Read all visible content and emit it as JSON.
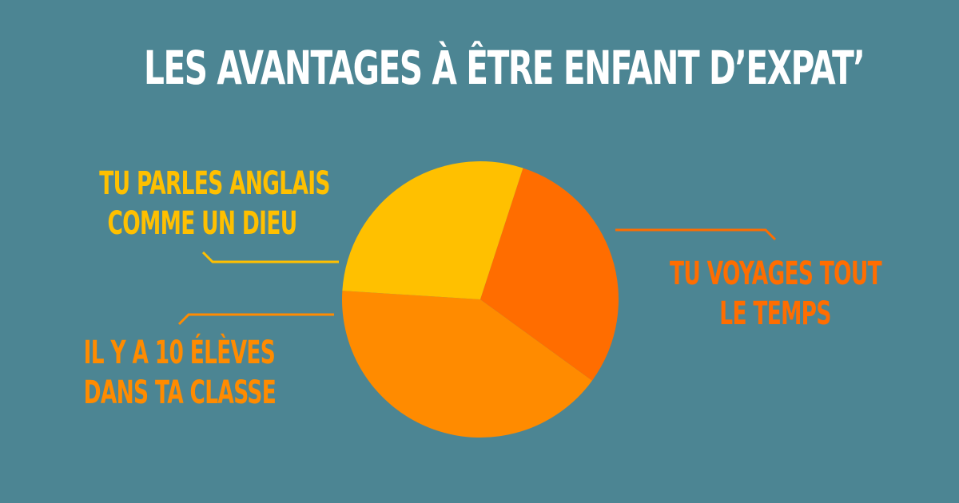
{
  "chart_data": {
    "type": "pie",
    "title": "LES AVANTAGES À ÊTRE ENFANT D’EXPAT’",
    "slices": [
      {
        "label_lines": [
          "TU VOYAGES TOUT",
          "LE TEMPS"
        ],
        "value": 30,
        "color": "#ff6d00"
      },
      {
        "label_lines": [
          "IL Y A 10 ÉLÈVES",
          "DANS TA CLASSE"
        ],
        "value": 41,
        "color": "#ff8b00"
      },
      {
        "label_lines": [
          "TU PARLES ANGLAIS",
          "COMME UN DIEU"
        ],
        "value": 29,
        "color": "#ffc000"
      }
    ],
    "start_angle_deg": 18,
    "legend": "none",
    "grid": false
  },
  "colors": {
    "background": "#4c8593",
    "title": "#ffffff"
  }
}
